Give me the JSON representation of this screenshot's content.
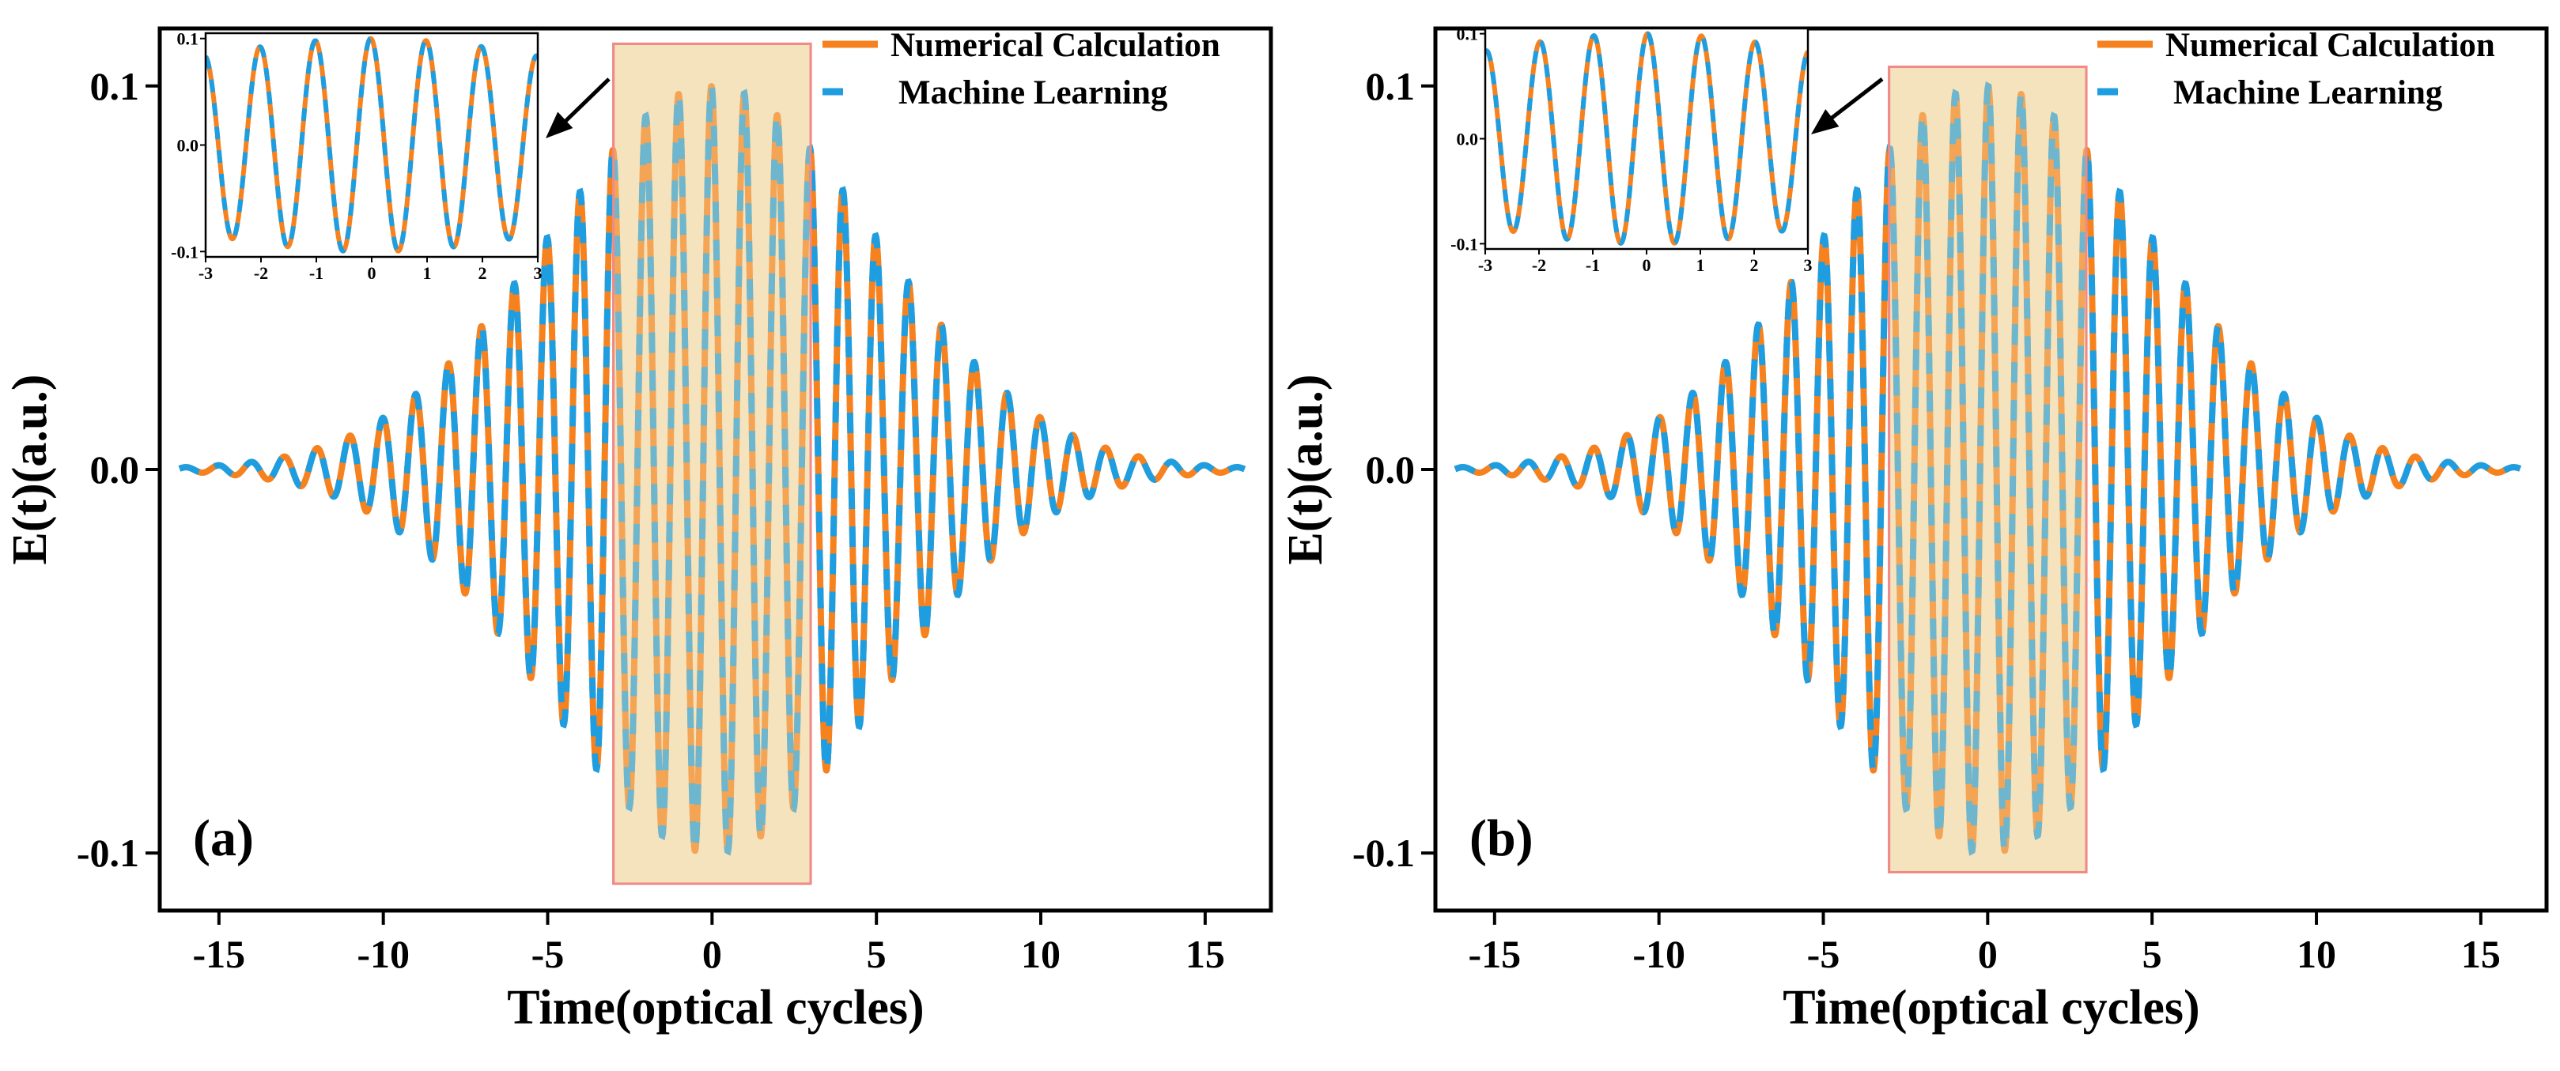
{
  "chart_data": [
    {
      "type": "line",
      "panel_label": "(a)",
      "xlabel": "Time(optical cycles)",
      "ylabel": "E(t)(a.u.)",
      "xlim": [
        -16.8,
        17.0
      ],
      "ylim": [
        -0.115,
        0.115
      ],
      "xticks": [
        -15,
        -10,
        -5,
        0,
        5,
        10,
        15
      ],
      "xtick_labels": [
        "-15",
        "-10",
        "-5",
        "0",
        "5",
        "10",
        "15"
      ],
      "yticks": [
        0.1,
        0.0,
        -0.1
      ],
      "ytick_labels": [
        "0.1",
        "0.0",
        "-0.1"
      ],
      "pulse": {
        "amplitude": 0.1,
        "width_sigma": 5.0,
        "period": 1.0,
        "phase": 0.12,
        "t_range": [
          -16.2,
          16.2
        ]
      },
      "series": [
        {
          "name": "Numerical Calculation",
          "style": "solid",
          "color": "#f5821f"
        },
        {
          "name": "Machine Learning",
          "style": "dashed",
          "color": "#1e9ee0"
        }
      ],
      "highlight_region": {
        "x": [
          -3,
          3
        ],
        "y": [
          -0.108,
          0.111
        ],
        "fill": "#f7e7c9",
        "edge": "#f08a86"
      },
      "inset": {
        "xlim": [
          -3,
          3
        ],
        "ylim": [
          -0.105,
          0.105
        ],
        "xticks": [
          -3,
          -2,
          -1,
          0,
          1,
          2,
          3
        ],
        "xtick_labels": [
          "-3",
          "-2",
          "-1",
          "0",
          "1",
          "2",
          "3"
        ],
        "yticks": [
          0.1,
          0.0,
          -0.1
        ],
        "ytick_labels": [
          "0.1",
          "0.0",
          "-0.1"
        ]
      },
      "legend_location": "top-right"
    },
    {
      "type": "line",
      "panel_label": "(b)",
      "xlabel": "Time(optical cycles)",
      "ylabel": "E(t)(a.u.)",
      "xlim": [
        -16.8,
        17.0
      ],
      "ylim": [
        -0.115,
        0.115
      ],
      "xticks": [
        -15,
        -10,
        -5,
        0,
        5,
        10,
        15
      ],
      "xtick_labels": [
        "-15",
        "-10",
        "-5",
        "0",
        "5",
        "10",
        "15"
      ],
      "yticks": [
        0.1,
        0.0,
        -0.1
      ],
      "ytick_labels": [
        "0.1",
        "0.0",
        "-0.1"
      ],
      "pulse": {
        "amplitude": 0.1,
        "width_sigma": 5.0,
        "period": 1.0,
        "phase": -0.12,
        "t_range": [
          -16.2,
          16.2
        ]
      },
      "series": [
        {
          "name": "Numerical Calculation",
          "style": "solid",
          "color": "#f5821f"
        },
        {
          "name": "Machine Learning",
          "style": "dashed",
          "color": "#1e9ee0"
        }
      ],
      "highlight_region": {
        "x": [
          -3,
          3
        ],
        "y": [
          -0.105,
          0.105
        ],
        "fill": "#f7e7c9",
        "edge": "#f08a86"
      },
      "inset": {
        "xlim": [
          -3,
          3
        ],
        "ylim": [
          -0.105,
          0.105
        ],
        "xticks": [
          -3,
          -2,
          -1,
          0,
          1,
          2,
          3
        ],
        "xtick_labels": [
          "-3",
          "-2",
          "-1",
          "0",
          "1",
          "2",
          "3"
        ],
        "yticks": [
          0.1,
          0.0,
          -0.1
        ],
        "ytick_labels": [
          "0.1",
          "0.0",
          "-0.1"
        ]
      },
      "legend_location": "top-right"
    }
  ]
}
